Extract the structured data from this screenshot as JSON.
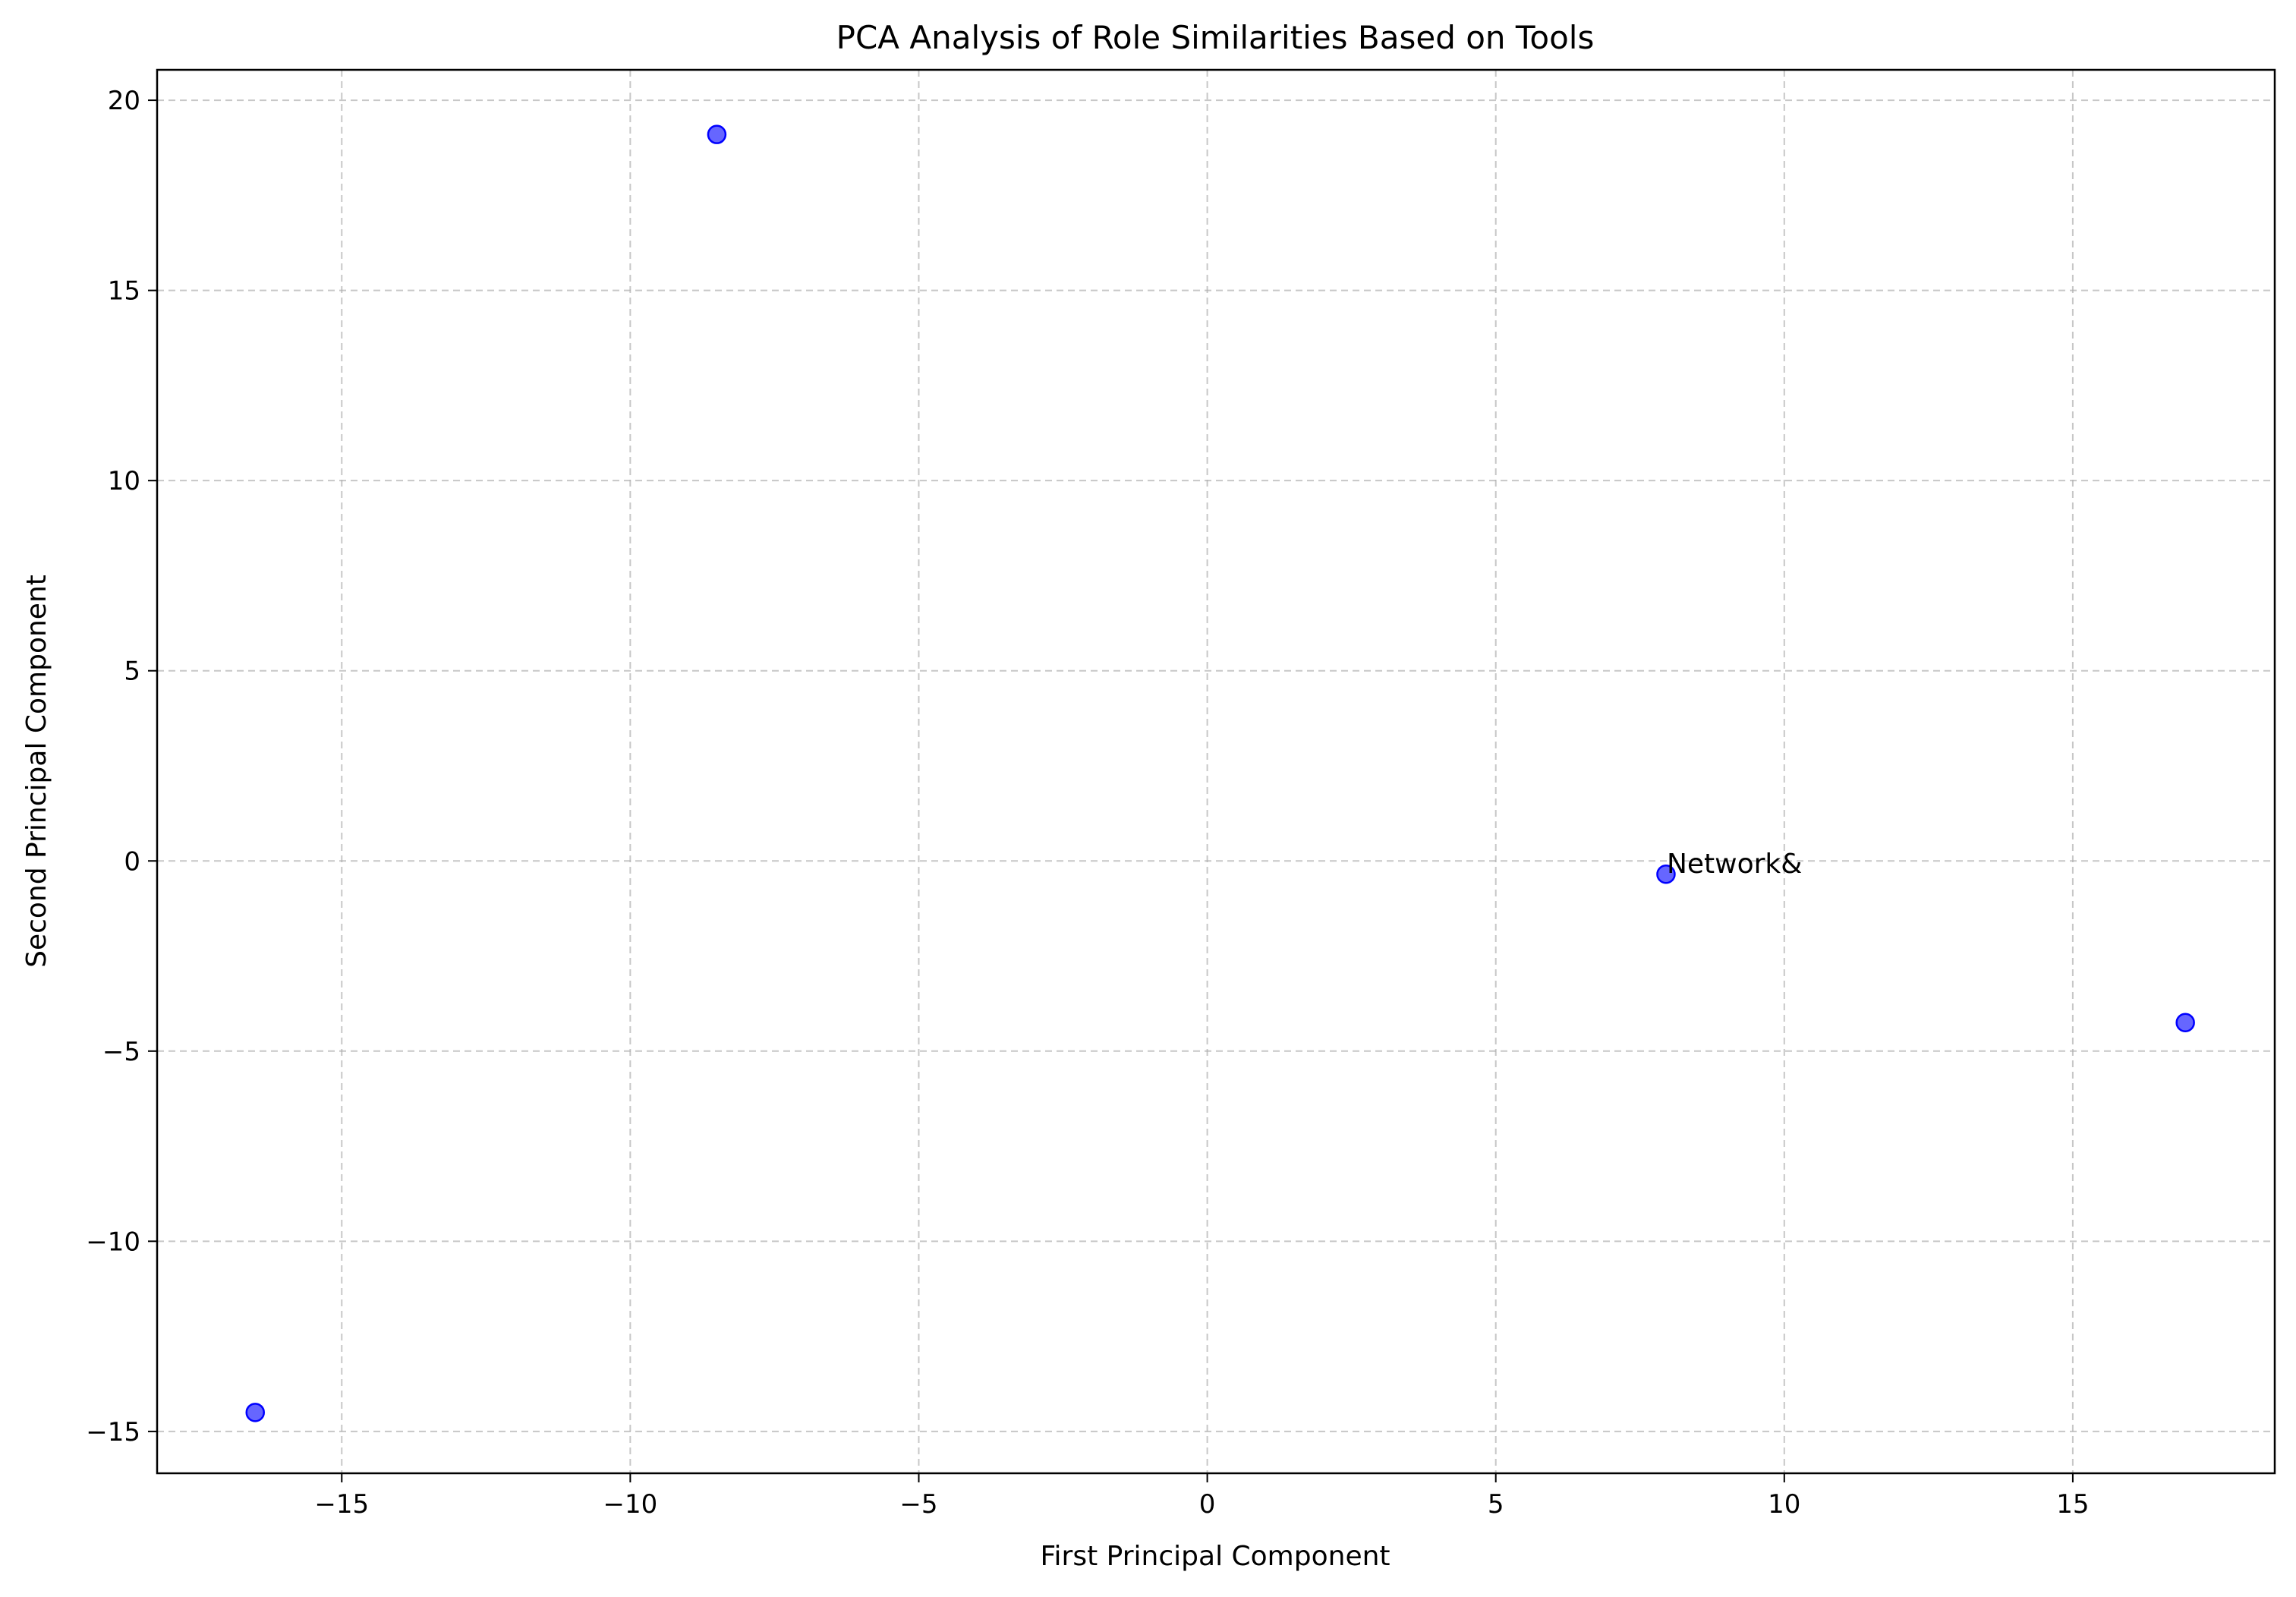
{
  "chart_data": {
    "type": "scatter",
    "title": "PCA Analysis of Role Similarities Based on Tools",
    "xlabel": "First Principal Component",
    "ylabel": "Second Principal Component",
    "xlim": [
      -18.2,
      18.5
    ],
    "ylim": [
      -16.1,
      20.8
    ],
    "x_ticks": [
      -15,
      -10,
      -5,
      0,
      5,
      10,
      15
    ],
    "y_ticks": [
      -15,
      -10,
      -5,
      0,
      5,
      10,
      15,
      20
    ],
    "x_tick_labels": [
      "−15",
      "−10",
      "−5",
      "0",
      "5",
      "10",
      "15"
    ],
    "y_tick_labels": [
      "−15",
      "−10",
      "−5",
      "0",
      "5",
      "10",
      "15",
      "20"
    ],
    "grid": true,
    "marker_color": "#0000ff",
    "marker_alpha": 0.6,
    "points": [
      {
        "x": -16.5,
        "y": -14.5,
        "label": ""
      },
      {
        "x": -8.5,
        "y": 19.1,
        "label": ""
      },
      {
        "x": 7.95,
        "y": -0.35,
        "label": "Network&"
      },
      {
        "x": 16.95,
        "y": -4.25,
        "label": ""
      }
    ]
  }
}
